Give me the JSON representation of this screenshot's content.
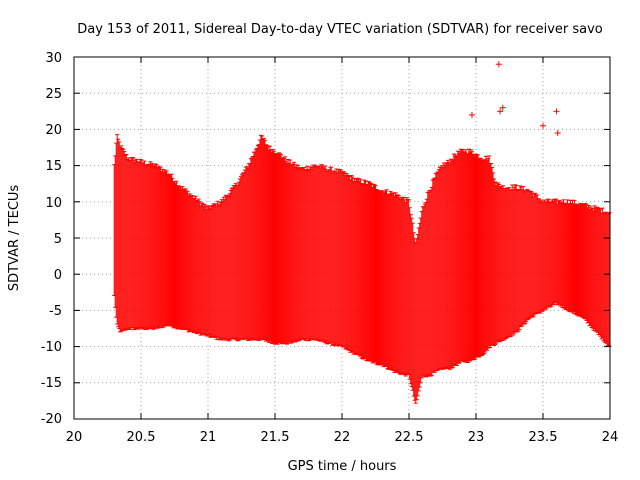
{
  "chart_data": {
    "type": "scatter",
    "title": "Day 153 of 2011, Sidereal Day-to-day VTEC variation (SDTVAR) for receiver savo",
    "xlabel": "GPS time / hours",
    "ylabel": "SDTVAR / TECUs",
    "xlim": [
      20,
      24
    ],
    "ylim": [
      -20,
      30
    ],
    "xticks": [
      "20",
      "20.5",
      "21",
      "21.5",
      "22",
      "22.5",
      "23",
      "23.5",
      "24"
    ],
    "yticks": [
      "30",
      "25",
      "20",
      "15",
      "10",
      "5",
      "0",
      "-5",
      "-10",
      "-15",
      "-20"
    ],
    "grid": true,
    "series_color": "#ff0000",
    "upper_envelope": {
      "x": [
        20.3,
        20.32,
        20.35,
        20.4,
        20.5,
        20.6,
        20.7,
        20.8,
        20.9,
        21.0,
        21.1,
        21.2,
        21.3,
        21.35,
        21.4,
        21.45,
        21.5,
        21.6,
        21.7,
        21.8,
        21.9,
        22.0,
        22.1,
        22.2,
        22.3,
        22.4,
        22.5,
        22.55,
        22.6,
        22.65,
        22.7,
        22.75,
        22.8,
        22.85,
        22.9,
        22.95,
        23.0,
        23.05,
        23.1,
        23.15,
        23.2,
        23.3,
        23.4,
        23.5,
        23.6,
        23.7,
        23.8,
        23.9,
        24.0
      ],
      "y": [
        15,
        19,
        17.5,
        16,
        15.5,
        15,
        14,
        12,
        10.5,
        9,
        10,
        12,
        15,
        17,
        19,
        17.5,
        17,
        15.5,
        14.5,
        15,
        14.5,
        14,
        13,
        12.5,
        11.5,
        11,
        10,
        4,
        9,
        11.5,
        13.5,
        15,
        15.5,
        16.5,
        17,
        17,
        16.5,
        16,
        16,
        12.5,
        12,
        12,
        11.5,
        10,
        10,
        10,
        9.5,
        9,
        8.5
      ]
    },
    "lower_envelope": {
      "x": [
        20.3,
        20.32,
        20.35,
        20.4,
        20.5,
        20.6,
        20.7,
        20.8,
        20.9,
        21.0,
        21.1,
        21.2,
        21.3,
        21.4,
        21.5,
        21.6,
        21.7,
        21.8,
        21.9,
        22.0,
        22.1,
        22.2,
        22.3,
        22.4,
        22.5,
        22.55,
        22.6,
        22.65,
        22.7,
        22.75,
        22.8,
        22.85,
        22.9,
        22.95,
        23.0,
        23.05,
        23.1,
        23.15,
        23.2,
        23.3,
        23.4,
        23.5,
        23.6,
        23.7,
        23.8,
        23.9,
        24.0
      ],
      "y": [
        -3,
        -7,
        -8,
        -7.5,
        -7.5,
        -7.5,
        -7,
        -7.5,
        -8,
        -8.5,
        -9,
        -9,
        -9,
        -9,
        -9.5,
        -9.5,
        -9,
        -9,
        -9.5,
        -10,
        -11,
        -12,
        -12.5,
        -13.5,
        -14,
        -18,
        -14,
        -14,
        -13.5,
        -13,
        -13,
        -12.5,
        -12,
        -12,
        -11.5,
        -11,
        -10,
        -9.5,
        -9,
        -8,
        -6,
        -5,
        -4,
        -5,
        -6,
        -8,
        -10
      ]
    },
    "outlier_points": {
      "x": [
        22.97,
        23.17,
        23.18,
        23.2,
        23.5,
        23.6,
        23.61
      ],
      "y": [
        22,
        29,
        22.5,
        23,
        20.5,
        22.5,
        19.5
      ]
    }
  }
}
